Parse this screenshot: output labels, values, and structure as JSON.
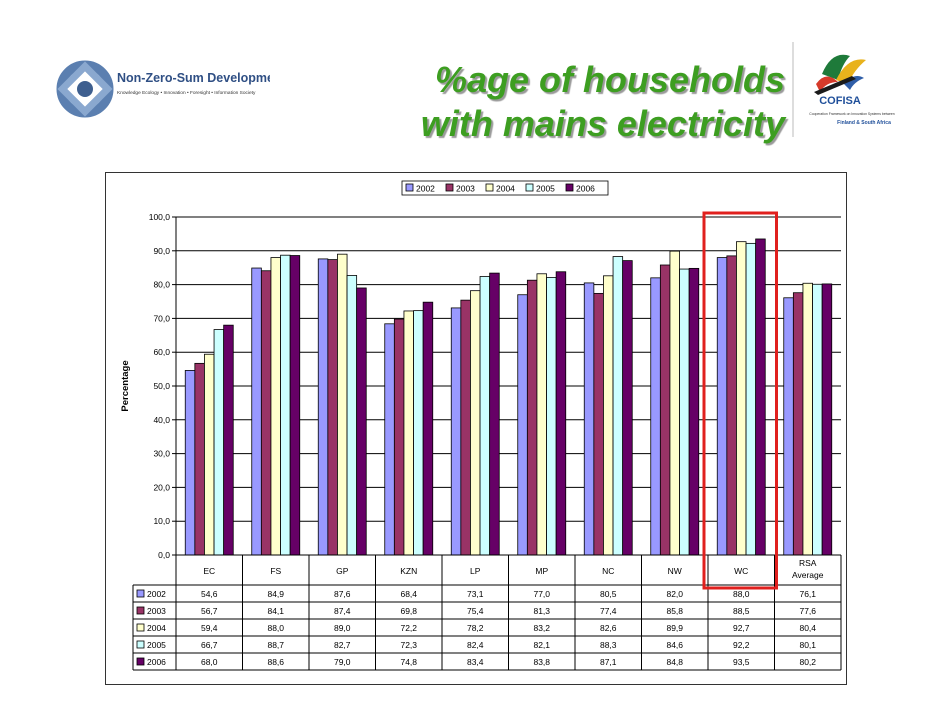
{
  "header": {
    "title_line1": "%age of households",
    "title_line2": "with mains electricity",
    "left_logo": {
      "name": "Non-Zero-Sum Development",
      "tagline": "Knowledge Ecology • Innovation • Foresight • Information Society"
    },
    "right_logo": {
      "name": "COFISA",
      "tagline": "Cooperation Framework on Innovation Systems between",
      "region": "Finland & South Africa"
    }
  },
  "colors": {
    "title": "#3d9e21",
    "highlight": "#e0201e",
    "series": [
      "#9999ff",
      "#993366",
      "#ffffcc",
      "#ccffff",
      "#660066"
    ]
  },
  "chart_data": {
    "type": "bar",
    "categories": [
      "EC",
      "FS",
      "GP",
      "KZN",
      "LP",
      "MP",
      "NC",
      "NW",
      "WC",
      "RSA Average"
    ],
    "series": [
      {
        "name": "2002",
        "values": [
          54.6,
          84.9,
          87.6,
          68.4,
          73.1,
          77.0,
          80.5,
          82.0,
          88.0,
          76.1
        ],
        "labels": [
          "54,6",
          "84,9",
          "87,6",
          "68,4",
          "73,1",
          "77,0",
          "80,5",
          "82,0",
          "88,0",
          "76,1"
        ]
      },
      {
        "name": "2003",
        "values": [
          56.7,
          84.1,
          87.4,
          69.8,
          75.4,
          81.3,
          77.4,
          85.8,
          88.5,
          77.6
        ],
        "labels": [
          "56,7",
          "84,1",
          "87,4",
          "69,8",
          "75,4",
          "81,3",
          "77,4",
          "85,8",
          "88,5",
          "77,6"
        ]
      },
      {
        "name": "2004",
        "values": [
          59.4,
          88.0,
          89.0,
          72.2,
          78.2,
          83.2,
          82.6,
          89.9,
          92.7,
          80.4
        ],
        "labels": [
          "59,4",
          "88,0",
          "89,0",
          "72,2",
          "78,2",
          "83,2",
          "82,6",
          "89,9",
          "92,7",
          "80,4"
        ]
      },
      {
        "name": "2005",
        "values": [
          66.7,
          88.7,
          82.7,
          72.3,
          82.4,
          82.1,
          88.3,
          84.6,
          92.2,
          80.1
        ],
        "labels": [
          "66,7",
          "88,7",
          "82,7",
          "72,3",
          "82,4",
          "82,1",
          "88,3",
          "84,6",
          "92,2",
          "80,1"
        ]
      },
      {
        "name": "2006",
        "values": [
          68.0,
          88.6,
          79.0,
          74.8,
          83.4,
          83.8,
          87.1,
          84.8,
          93.5,
          80.2
        ],
        "labels": [
          "68,0",
          "88,6",
          "79,0",
          "74,8",
          "83,4",
          "83,8",
          "87,1",
          "84,8",
          "93,5",
          "80,2"
        ]
      }
    ],
    "title": "",
    "xlabel": "",
    "ylabel": "Percentage",
    "ylim": [
      0,
      100
    ],
    "yticks": [
      "0,0",
      "10,0",
      "20,0",
      "30,0",
      "40,0",
      "50,0",
      "60,0",
      "70,0",
      "80,0",
      "90,0",
      "100,0"
    ],
    "grid": "horizontal major gridlines",
    "legend": "top-center",
    "data_table": true,
    "highlighted_category": "WC"
  }
}
